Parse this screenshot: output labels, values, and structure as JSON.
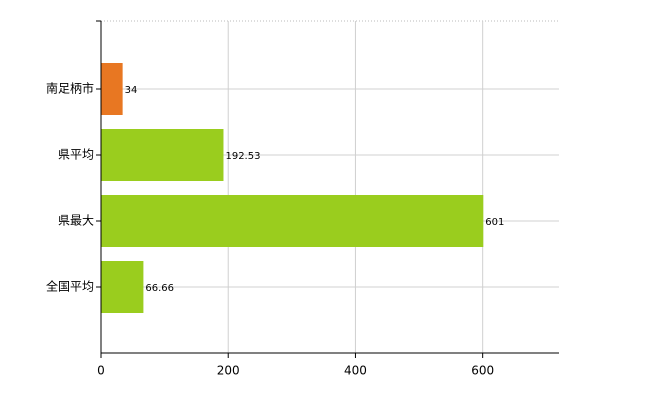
{
  "chart_data": {
    "type": "barh",
    "categories": [
      "南足柄市",
      "県平均",
      "県最大",
      "全国平均"
    ],
    "values": [
      34,
      192.53,
      601,
      66.66
    ],
    "colors": [
      "#e87722",
      "#9acd1e",
      "#9acd1e",
      "#9acd1e"
    ],
    "xlim": [
      0,
      720
    ],
    "xticks": [
      0,
      200,
      400,
      600
    ],
    "grid": true
  }
}
